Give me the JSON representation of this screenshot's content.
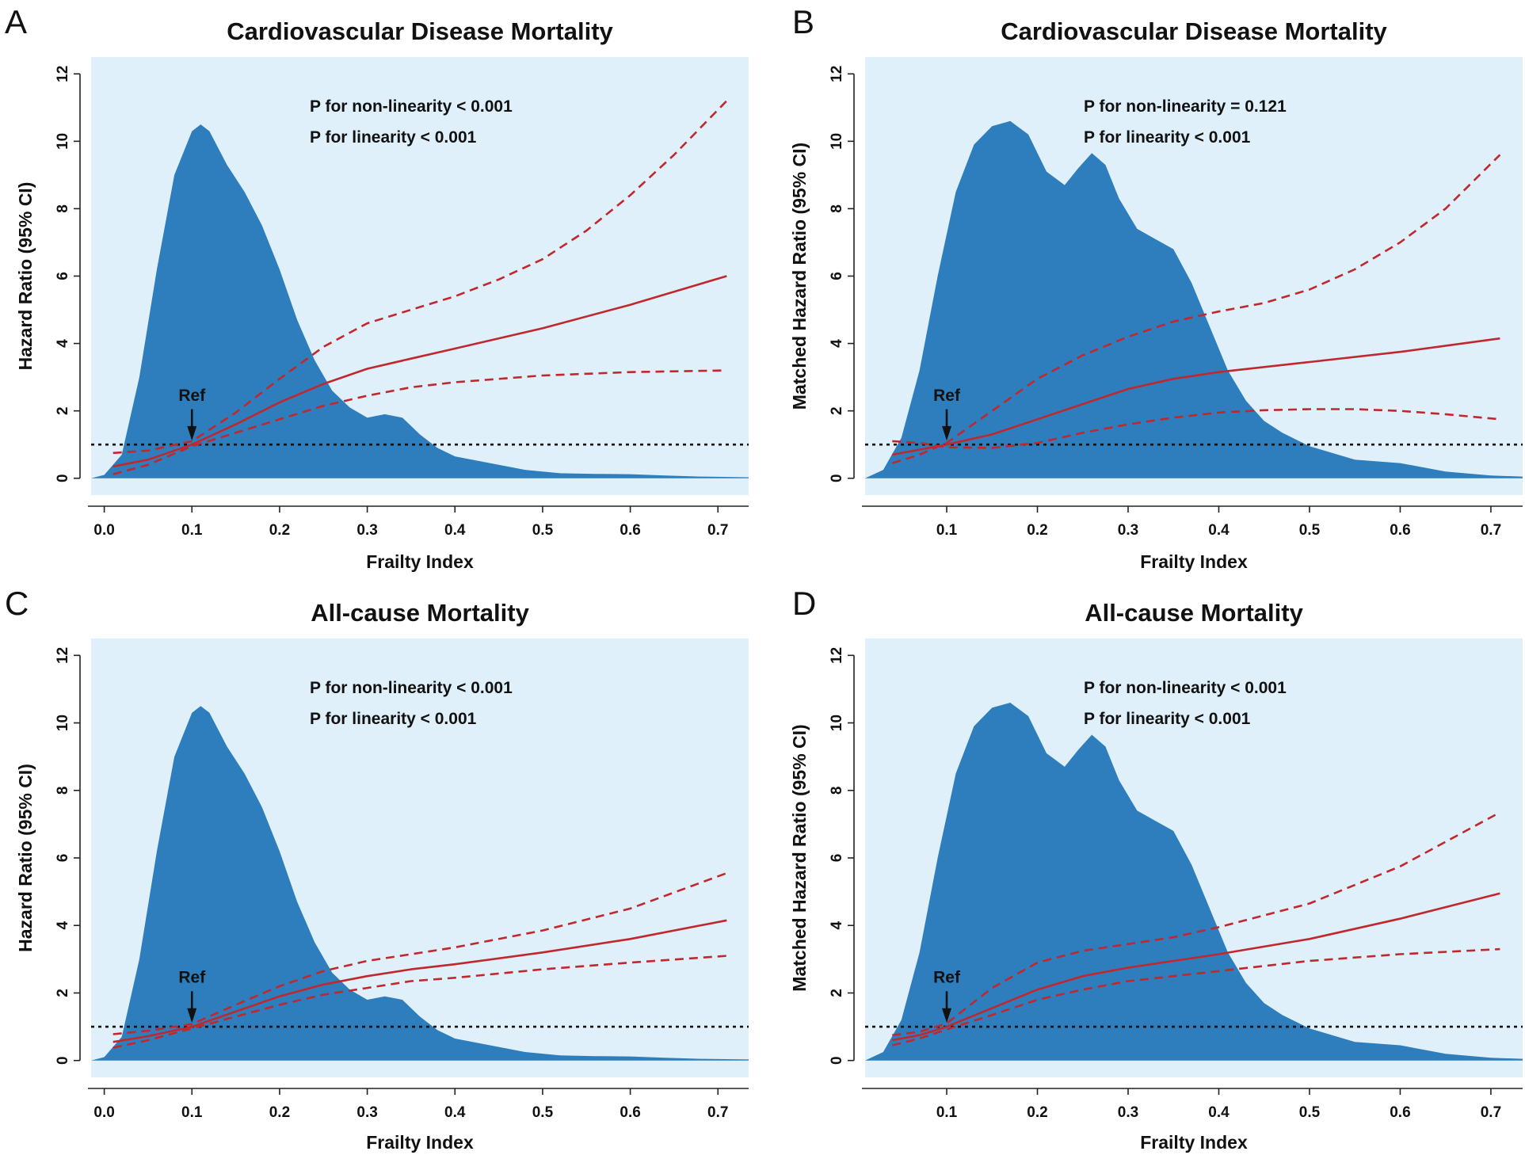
{
  "figure": {
    "colors": {
      "panel_background": "#dff0fb",
      "density_fill": "#2e7ebd",
      "curve": "#c0282d",
      "reference_line": "#111111"
    }
  },
  "chart_data": [
    {
      "panel": "A",
      "type": "line",
      "title": "Cardiovascular Disease Mortality",
      "xlabel": "Frailty Index",
      "ylabel": "Hazard Ratio (95% CI)",
      "xlim": [
        -0.015,
        0.735
      ],
      "ylim": [
        -0.5,
        12.5
      ],
      "xticks": [
        "0.0",
        "0.1",
        "0.2",
        "0.3",
        "0.4",
        "0.5",
        "0.6",
        "0.7"
      ],
      "yticks": [
        "0",
        "2",
        "4",
        "6",
        "8",
        "10",
        "12"
      ],
      "annotations": [
        "P for non-linearity < 0.001",
        "P for linearity < 0.001"
      ],
      "reference": {
        "label": "Ref",
        "x": 0.1,
        "y": 1
      },
      "density": {
        "x": [
          -0.015,
          0.0,
          0.02,
          0.04,
          0.06,
          0.08,
          0.1,
          0.11,
          0.12,
          0.14,
          0.16,
          0.18,
          0.2,
          0.22,
          0.24,
          0.26,
          0.28,
          0.3,
          0.32,
          0.34,
          0.36,
          0.38,
          0.4,
          0.44,
          0.48,
          0.52,
          0.56,
          0.6,
          0.64,
          0.68,
          0.735
        ],
        "y": [
          0.0,
          0.1,
          0.7,
          3.0,
          6.2,
          9.0,
          10.3,
          10.5,
          10.3,
          9.3,
          8.5,
          7.5,
          6.2,
          4.7,
          3.5,
          2.6,
          2.1,
          1.8,
          1.9,
          1.8,
          1.3,
          0.9,
          0.65,
          0.45,
          0.25,
          0.15,
          0.13,
          0.12,
          0.08,
          0.05,
          0.03
        ]
      },
      "series": [
        {
          "name": "HR",
          "style": "solid",
          "x": [
            0.01,
            0.05,
            0.1,
            0.15,
            0.2,
            0.25,
            0.3,
            0.35,
            0.4,
            0.5,
            0.6,
            0.71
          ],
          "y": [
            0.35,
            0.55,
            1.0,
            1.6,
            2.25,
            2.8,
            3.25,
            3.55,
            3.85,
            4.45,
            5.15,
            6.0
          ]
        },
        {
          "name": "Upper 95% CI",
          "style": "dashed",
          "x": [
            0.01,
            0.05,
            0.1,
            0.15,
            0.2,
            0.25,
            0.3,
            0.35,
            0.4,
            0.45,
            0.5,
            0.55,
            0.6,
            0.65,
            0.71
          ],
          "y": [
            0.75,
            0.82,
            1.1,
            1.95,
            2.95,
            3.9,
            4.6,
            5.0,
            5.4,
            5.9,
            6.5,
            7.35,
            8.4,
            9.6,
            11.2
          ]
        },
        {
          "name": "Lower 95% CI",
          "style": "dashed",
          "x": [
            0.01,
            0.05,
            0.1,
            0.15,
            0.2,
            0.25,
            0.3,
            0.35,
            0.4,
            0.5,
            0.6,
            0.71
          ],
          "y": [
            0.12,
            0.4,
            0.95,
            1.35,
            1.75,
            2.15,
            2.45,
            2.7,
            2.85,
            3.05,
            3.15,
            3.2
          ]
        }
      ]
    },
    {
      "panel": "B",
      "type": "line",
      "title": "Cardiovascular Disease Mortality",
      "xlabel": "Frailty Index",
      "ylabel": "Matched Hazard Ratio (95% CI)",
      "xlim": [
        0.01,
        0.735
      ],
      "ylim": [
        -0.5,
        12.5
      ],
      "xticks": [
        "0.1",
        "0.2",
        "0.3",
        "0.4",
        "0.5",
        "0.6",
        "0.7"
      ],
      "yticks": [
        "0",
        "2",
        "4",
        "6",
        "8",
        "10",
        "12"
      ],
      "annotations": [
        "P for non-linearity = 0.121",
        "P for linearity < 0.001"
      ],
      "reference": {
        "label": "Ref",
        "x": 0.1,
        "y": 1
      },
      "density": {
        "x": [
          0.01,
          0.03,
          0.05,
          0.07,
          0.09,
          0.11,
          0.13,
          0.15,
          0.17,
          0.19,
          0.21,
          0.23,
          0.245,
          0.26,
          0.275,
          0.29,
          0.31,
          0.33,
          0.35,
          0.37,
          0.39,
          0.41,
          0.43,
          0.45,
          0.47,
          0.5,
          0.55,
          0.6,
          0.65,
          0.7,
          0.735
        ],
        "y": [
          0.0,
          0.25,
          1.2,
          3.2,
          6.0,
          8.5,
          9.9,
          10.45,
          10.6,
          10.2,
          9.1,
          8.7,
          9.2,
          9.65,
          9.3,
          8.3,
          7.4,
          7.1,
          6.8,
          5.8,
          4.5,
          3.2,
          2.3,
          1.7,
          1.35,
          0.95,
          0.55,
          0.45,
          0.2,
          0.08,
          0.05
        ]
      },
      "series": [
        {
          "name": "HR",
          "style": "solid",
          "x": [
            0.04,
            0.07,
            0.1,
            0.15,
            0.2,
            0.25,
            0.3,
            0.35,
            0.4,
            0.5,
            0.6,
            0.71
          ],
          "y": [
            0.7,
            0.85,
            1.0,
            1.3,
            1.75,
            2.2,
            2.65,
            2.95,
            3.15,
            3.45,
            3.75,
            4.15
          ]
        },
        {
          "name": "Upper 95% CI",
          "style": "dashed",
          "x": [
            0.04,
            0.07,
            0.1,
            0.15,
            0.2,
            0.25,
            0.3,
            0.35,
            0.4,
            0.45,
            0.5,
            0.55,
            0.6,
            0.65,
            0.71
          ],
          "y": [
            0.45,
            0.7,
            1.05,
            2.0,
            2.95,
            3.65,
            4.2,
            4.65,
            4.95,
            5.2,
            5.6,
            6.2,
            7.0,
            8.0,
            9.6
          ]
        },
        {
          "name": "Lower 95% CI",
          "style": "dashed",
          "x": [
            0.04,
            0.07,
            0.1,
            0.15,
            0.2,
            0.25,
            0.3,
            0.35,
            0.4,
            0.45,
            0.5,
            0.55,
            0.6,
            0.65,
            0.71
          ],
          "y": [
            1.1,
            1.05,
            0.92,
            0.9,
            1.05,
            1.35,
            1.6,
            1.8,
            1.95,
            2.02,
            2.05,
            2.05,
            2.0,
            1.9,
            1.75
          ]
        }
      ]
    },
    {
      "panel": "C",
      "type": "line",
      "title": "All-cause Mortality",
      "xlabel": "Frailty Index",
      "ylabel": "Hazard Ratio (95% CI)",
      "xlim": [
        -0.015,
        0.735
      ],
      "ylim": [
        -0.5,
        12.5
      ],
      "xticks": [
        "0.0",
        "0.1",
        "0.2",
        "0.3",
        "0.4",
        "0.5",
        "0.6",
        "0.7"
      ],
      "yticks": [
        "0",
        "2",
        "4",
        "6",
        "8",
        "10",
        "12"
      ],
      "annotations": [
        "P for non-linearity < 0.001",
        "P for linearity < 0.001"
      ],
      "reference": {
        "label": "Ref",
        "x": 0.1,
        "y": 1
      },
      "density": {
        "x": [
          -0.015,
          0.0,
          0.02,
          0.04,
          0.06,
          0.08,
          0.1,
          0.11,
          0.12,
          0.14,
          0.16,
          0.18,
          0.2,
          0.22,
          0.24,
          0.26,
          0.28,
          0.3,
          0.32,
          0.34,
          0.36,
          0.38,
          0.4,
          0.44,
          0.48,
          0.52,
          0.56,
          0.6,
          0.64,
          0.68,
          0.735
        ],
        "y": [
          0.0,
          0.1,
          0.7,
          3.0,
          6.2,
          9.0,
          10.3,
          10.5,
          10.3,
          9.3,
          8.5,
          7.5,
          6.2,
          4.7,
          3.5,
          2.6,
          2.1,
          1.8,
          1.9,
          1.8,
          1.3,
          0.9,
          0.65,
          0.45,
          0.25,
          0.15,
          0.13,
          0.12,
          0.08,
          0.05,
          0.03
        ]
      },
      "series": [
        {
          "name": "HR",
          "style": "solid",
          "x": [
            0.01,
            0.05,
            0.1,
            0.15,
            0.2,
            0.25,
            0.3,
            0.35,
            0.4,
            0.5,
            0.6,
            0.71
          ],
          "y": [
            0.55,
            0.72,
            1.0,
            1.45,
            1.9,
            2.25,
            2.5,
            2.7,
            2.85,
            3.2,
            3.6,
            4.15
          ]
        },
        {
          "name": "Upper 95% CI",
          "style": "dashed",
          "x": [
            0.01,
            0.05,
            0.1,
            0.15,
            0.2,
            0.25,
            0.3,
            0.35,
            0.4,
            0.5,
            0.6,
            0.71
          ],
          "y": [
            0.78,
            0.88,
            1.08,
            1.65,
            2.2,
            2.65,
            2.95,
            3.15,
            3.35,
            3.85,
            4.5,
            5.55
          ]
        },
        {
          "name": "Lower 95% CI",
          "style": "dashed",
          "x": [
            0.01,
            0.05,
            0.1,
            0.15,
            0.2,
            0.25,
            0.3,
            0.35,
            0.4,
            0.5,
            0.6,
            0.71
          ],
          "y": [
            0.38,
            0.6,
            0.95,
            1.3,
            1.65,
            1.95,
            2.15,
            2.35,
            2.45,
            2.7,
            2.9,
            3.1
          ]
        }
      ]
    },
    {
      "panel": "D",
      "type": "line",
      "title": "All-cause Mortality",
      "xlabel": "Frailty Index",
      "ylabel": "Matched Hazard Ratio (95% CI)",
      "xlim": [
        0.01,
        0.735
      ],
      "ylim": [
        -0.5,
        12.5
      ],
      "xticks": [
        "0.1",
        "0.2",
        "0.3",
        "0.4",
        "0.5",
        "0.6",
        "0.7"
      ],
      "yticks": [
        "0",
        "2",
        "4",
        "6",
        "8",
        "10",
        "12"
      ],
      "annotations": [
        "P for non-linearity < 0.001",
        "P for linearity < 0.001"
      ],
      "reference": {
        "label": "Ref",
        "x": 0.1,
        "y": 1
      },
      "density": {
        "x": [
          0.01,
          0.03,
          0.05,
          0.07,
          0.09,
          0.11,
          0.13,
          0.15,
          0.17,
          0.19,
          0.21,
          0.23,
          0.245,
          0.26,
          0.275,
          0.29,
          0.31,
          0.33,
          0.35,
          0.37,
          0.39,
          0.41,
          0.43,
          0.45,
          0.47,
          0.5,
          0.55,
          0.6,
          0.65,
          0.7,
          0.735
        ],
        "y": [
          0.0,
          0.25,
          1.2,
          3.2,
          6.0,
          8.5,
          9.9,
          10.45,
          10.6,
          10.2,
          9.1,
          8.7,
          9.2,
          9.65,
          9.3,
          8.3,
          7.4,
          7.1,
          6.8,
          5.8,
          4.5,
          3.2,
          2.3,
          1.7,
          1.35,
          0.95,
          0.55,
          0.45,
          0.2,
          0.08,
          0.05
        ]
      },
      "series": [
        {
          "name": "HR",
          "style": "solid",
          "x": [
            0.04,
            0.07,
            0.1,
            0.15,
            0.2,
            0.25,
            0.3,
            0.35,
            0.4,
            0.5,
            0.6,
            0.71
          ],
          "y": [
            0.6,
            0.75,
            1.0,
            1.55,
            2.1,
            2.5,
            2.75,
            2.95,
            3.15,
            3.6,
            4.2,
            4.95
          ]
        },
        {
          "name": "Upper 95% CI",
          "style": "dashed",
          "x": [
            0.04,
            0.07,
            0.1,
            0.15,
            0.2,
            0.25,
            0.3,
            0.35,
            0.4,
            0.5,
            0.6,
            0.71
          ],
          "y": [
            0.75,
            0.85,
            1.1,
            2.15,
            2.9,
            3.25,
            3.45,
            3.65,
            3.95,
            4.65,
            5.75,
            7.35
          ]
        },
        {
          "name": "Lower 95% CI",
          "style": "dashed",
          "x": [
            0.04,
            0.07,
            0.1,
            0.15,
            0.2,
            0.25,
            0.3,
            0.35,
            0.4,
            0.5,
            0.6,
            0.71
          ],
          "y": [
            0.45,
            0.65,
            0.92,
            1.35,
            1.8,
            2.1,
            2.35,
            2.5,
            2.65,
            2.95,
            3.15,
            3.3
          ]
        }
      ]
    }
  ]
}
